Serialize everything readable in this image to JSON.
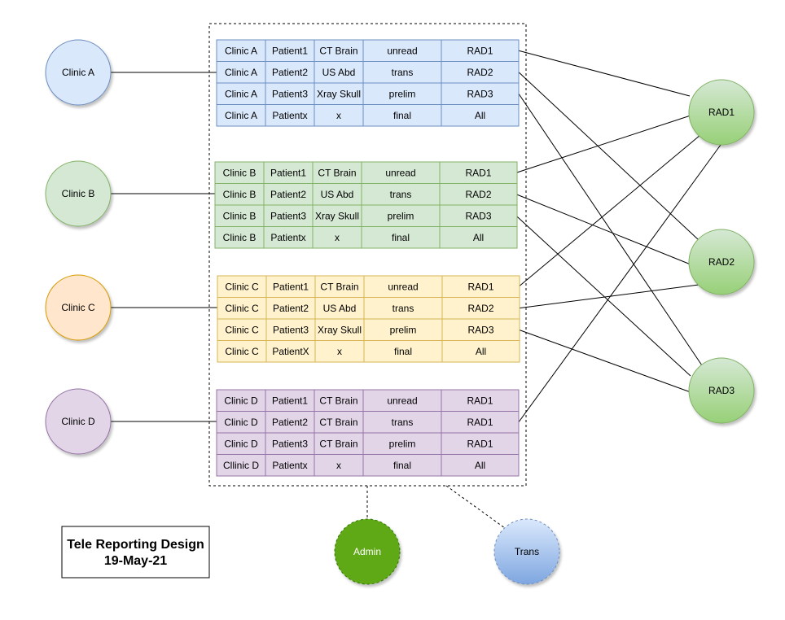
{
  "clinics": [
    {
      "label": "Clinic A",
      "fill": "#dae8fc",
      "stroke": "#6c8ebf",
      "table_fill": "#dae8fc",
      "table_stroke": "#6c8ebf",
      "rows": [
        [
          "Clinic A",
          "Patient1",
          "CT Brain",
          "unread",
          "RAD1"
        ],
        [
          "Clinic A",
          "Patient2",
          "US Abd",
          "trans",
          "RAD2"
        ],
        [
          "Clinic A",
          "Patient3",
          "Xray Skull",
          "prelim",
          "RAD3"
        ],
        [
          "Clinic A",
          "Patientx",
          "x",
          "final",
          "All"
        ]
      ]
    },
    {
      "label": "Clinic B",
      "fill": "#d5e8d4",
      "stroke": "#82b366",
      "table_fill": "#d5e8d4",
      "table_stroke": "#82b366",
      "rows": [
        [
          "Clinic B",
          "Patient1",
          "CT Brain",
          "unread",
          "RAD1"
        ],
        [
          "Clinic B",
          "Patient2",
          "US Abd",
          "trans",
          "RAD2"
        ],
        [
          "Clinic B",
          "Patient3",
          "Xray Skull",
          "prelim",
          "RAD3"
        ],
        [
          "Clinic B",
          "Patientx",
          "x",
          "final",
          "All"
        ]
      ]
    },
    {
      "label": "Clinic C",
      "fill": "#ffe6cc",
      "stroke": "#d79b00",
      "table_fill": "#fff2cc",
      "table_stroke": "#d6b656",
      "rows": [
        [
          "Clinic C",
          "Patient1",
          "CT Brain",
          "unread",
          "RAD1"
        ],
        [
          "Clinic C",
          "Patient2",
          "US Abd",
          "trans",
          "RAD2"
        ],
        [
          "Clinic C",
          "Patient3",
          "Xray Skull",
          "prelim",
          "RAD3"
        ],
        [
          "Clinic C",
          "PatientX",
          "x",
          "final",
          "All"
        ]
      ]
    },
    {
      "label": "Clinic D",
      "fill": "#e1d5e7",
      "stroke": "#9673a6",
      "table_fill": "#e1d5e7",
      "table_stroke": "#9673a6",
      "rows": [
        [
          "Clinic D",
          "Patient1",
          "CT Brain",
          "unread",
          "RAD1"
        ],
        [
          "Clinic D",
          "Patient2",
          "CT Brain",
          "trans",
          "RAD1"
        ],
        [
          "Clinic D",
          "Patient3",
          "CT Brain",
          "prelim",
          "RAD1"
        ],
        [
          "Cllinic D",
          "Patientx",
          "x",
          "final",
          "All"
        ]
      ]
    }
  ],
  "radiologists": [
    {
      "label": "RAD1"
    },
    {
      "label": "RAD2"
    },
    {
      "label": "RAD3"
    }
  ],
  "assignments": [
    {
      "clinic": 0,
      "row": 0,
      "rad": 0
    },
    {
      "clinic": 0,
      "row": 1,
      "rad": 1
    },
    {
      "clinic": 0,
      "row": 2,
      "rad": 2
    },
    {
      "clinic": 1,
      "row": 0,
      "rad": 0
    },
    {
      "clinic": 1,
      "row": 1,
      "rad": 1
    },
    {
      "clinic": 1,
      "row": 2,
      "rad": 2
    },
    {
      "clinic": 2,
      "row": 0,
      "rad": 0
    },
    {
      "clinic": 2,
      "row": 1,
      "rad": 1
    },
    {
      "clinic": 2,
      "row": 2,
      "rad": 2
    },
    {
      "clinic": 3,
      "row": 1,
      "rad": 0
    }
  ],
  "admin": {
    "label": "Admin",
    "fill": "#60a917",
    "stroke": "#2d7600"
  },
  "trans": {
    "label": "Trans",
    "fill_top": "#dae8fc",
    "fill_bottom": "#7ea6e0",
    "stroke": "#6c8ebf"
  },
  "rad_colors": {
    "fill_top": "#d5e8d4",
    "fill_bottom": "#97d077",
    "stroke": "#82b366"
  },
  "title": {
    "line1": "Tele Reporting Design",
    "line2": "19-May-21"
  }
}
